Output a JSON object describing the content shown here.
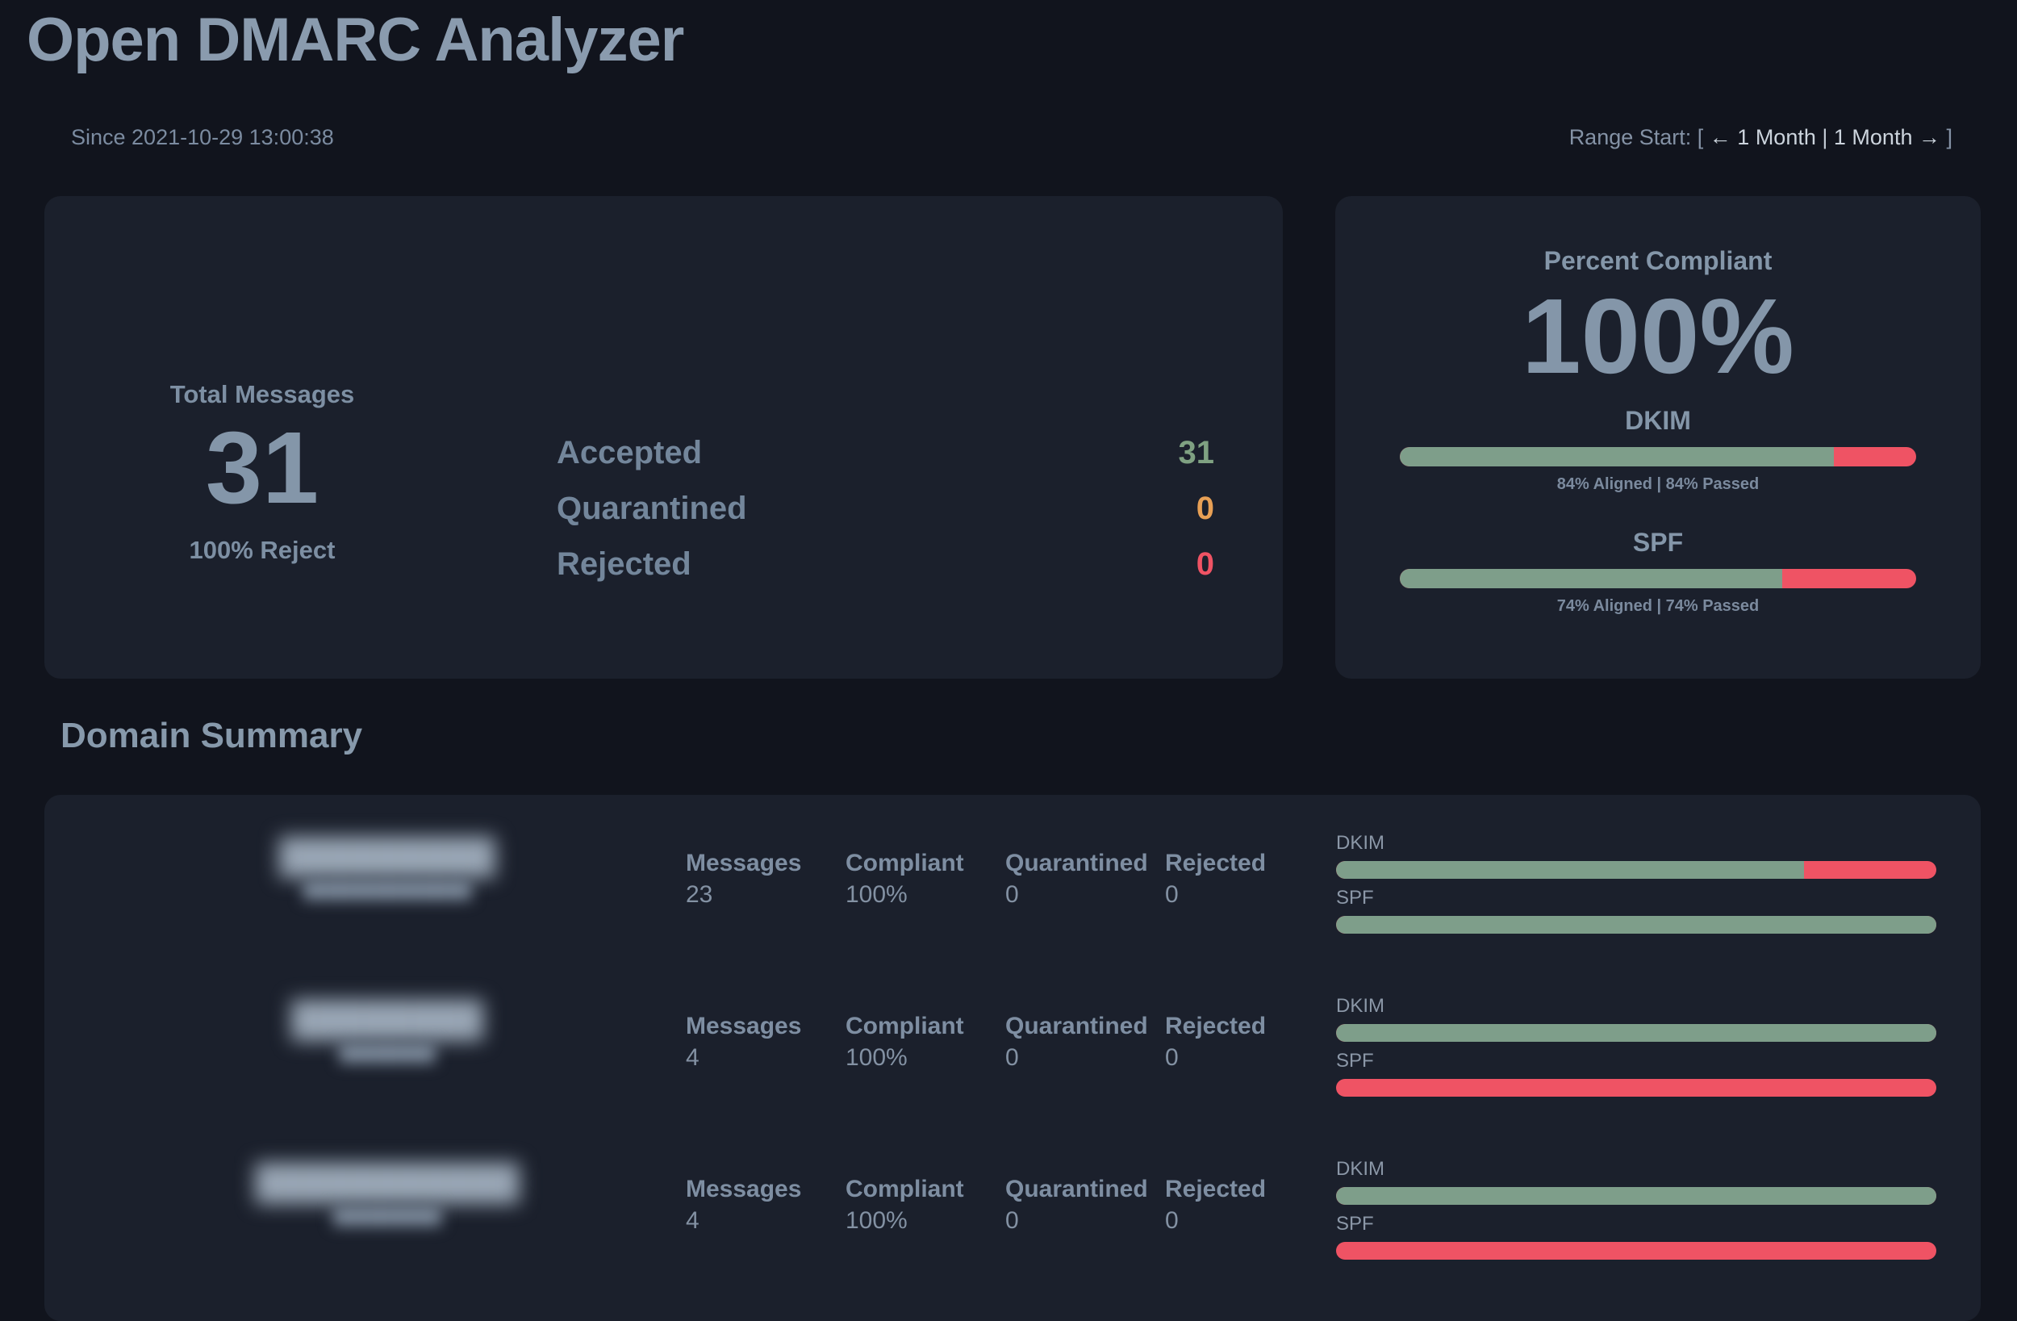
{
  "header": {
    "title": "Open DMARC Analyzer",
    "since": "Since 2021-10-29 13:00:38",
    "range": {
      "label": "Range Start: [",
      "prev_link": "← 1 Month",
      "separator": "|",
      "next_link": "1 Month →",
      "close_bracket": "]"
    }
  },
  "totals": {
    "label": "Total Messages",
    "value": "31",
    "policy": "100% Reject",
    "rows": [
      {
        "label": "Accepted",
        "value": "31",
        "color": "#7fa182"
      },
      {
        "label": "Quarantined",
        "value": "0",
        "color": "#e8a055"
      },
      {
        "label": "Rejected",
        "value": "0",
        "color": "#ef5364"
      }
    ]
  },
  "compliance": {
    "title": "Percent Compliant",
    "percent": "100%",
    "bars": [
      {
        "label": "DKIM",
        "aligned_pct": 84,
        "caption": "84% Aligned | 84% Passed"
      },
      {
        "label": "SPF",
        "aligned_pct": 74,
        "caption": "74% Aligned | 74% Passed"
      }
    ]
  },
  "domain_summary": {
    "title": "Domain Summary",
    "col_messages": "Messages",
    "col_compliant": "Compliant",
    "col_quarantined": "Quarantined",
    "col_rejected": "Rejected",
    "dkim_label": "DKIM",
    "spf_label": "SPF",
    "rows": [
      {
        "domain_blurred": "█████████",
        "subdomain_blurred": "██████████████",
        "messages": "23",
        "compliant": "100%",
        "quarantined": "0",
        "rejected": "0",
        "dkim_pct": 78,
        "spf_pct": 100
      },
      {
        "domain_blurred": "████████",
        "subdomain_blurred": "████████",
        "messages": "4",
        "compliant": "100%",
        "quarantined": "0",
        "rejected": "0",
        "dkim_pct": 100,
        "spf_pct": 0
      },
      {
        "domain_blurred": "███████████",
        "subdomain_blurred": "█████████",
        "messages": "4",
        "compliant": "100%",
        "quarantined": "0",
        "rejected": "0",
        "dkim_pct": 100,
        "spf_pct": 0
      }
    ]
  },
  "colors": {
    "pass_green": "#7e9e8a",
    "fail_red": "#ef5364",
    "quarantine_orange": "#e8a055",
    "page_background": "#11141d",
    "card_background": "#1b202c",
    "text_blue_gray": "#8496a9"
  }
}
